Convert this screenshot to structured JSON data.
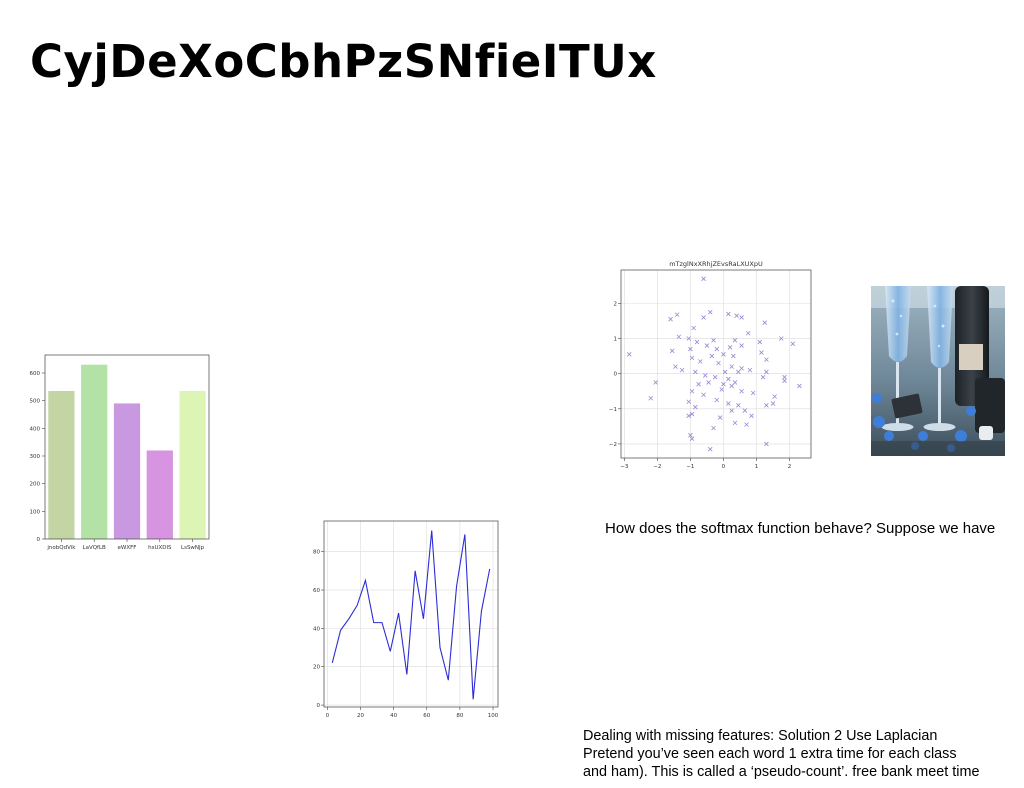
{
  "slide": {
    "title": "CyjDeXoCbhPzSNfieITUx",
    "softmax_text": "How does the softmax function behave? Suppose we have",
    "notes": [
      "Dealing with missing features: Solution 2 Use Laplacian",
      "Pretend you’ve seen each word 1 extra time for each class",
      "and ham). This is called a ‘pseudo-count’. free bank meet time"
    ]
  },
  "chart_data": [
    {
      "type": "bar",
      "title": "",
      "xlabel": "",
      "ylabel": "",
      "categories": [
        "jnobQdVik",
        "LaVQfLB",
        "eWXFF",
        "hsUXDlS",
        "LsSwNJp"
      ],
      "values": [
        535,
        630,
        490,
        320,
        535
      ],
      "colors": [
        "#c3d5a2",
        "#b2e2a6",
        "#c899e1",
        "#d794e0",
        "#dcf5b5"
      ],
      "ylim": [
        0,
        665
      ],
      "yticks": [
        0,
        100,
        200,
        300,
        400,
        500,
        600
      ],
      "grid": false
    },
    {
      "type": "line",
      "title": "",
      "xlabel": "",
      "ylabel": "",
      "x": [
        3,
        8,
        13,
        18,
        23,
        28,
        33,
        38,
        43,
        48,
        53,
        58,
        63,
        68,
        73,
        78,
        83,
        88,
        93,
        98
      ],
      "values": [
        22,
        39,
        45,
        52,
        65,
        43,
        43,
        28,
        48,
        16,
        70,
        45,
        91,
        30,
        13,
        62,
        89,
        3,
        49,
        71
      ],
      "color": "#2d2dd6",
      "xlim": [
        -2,
        103
      ],
      "ylim": [
        -1,
        96
      ],
      "xticks": [
        0,
        20,
        40,
        60,
        80,
        100
      ],
      "yticks": [
        0,
        20,
        40,
        60,
        80
      ],
      "grid": true
    },
    {
      "type": "scatter",
      "title": "mTzglNxXRhjZEvsRaLXUXpU",
      "xlabel": "",
      "ylabel": "",
      "marker": "x",
      "color": "#9b86d6",
      "points": [
        [
          -0.6,
          2.7
        ],
        [
          -0.4,
          1.75
        ],
        [
          0.15,
          1.7
        ],
        [
          0.4,
          1.65
        ],
        [
          -1.4,
          1.68
        ],
        [
          -0.6,
          1.6
        ],
        [
          0.55,
          1.6
        ],
        [
          -1.6,
          1.55
        ],
        [
          1.25,
          1.45
        ],
        [
          -0.9,
          1.3
        ],
        [
          0.75,
          1.15
        ],
        [
          -1.35,
          1.05
        ],
        [
          -1.05,
          1.0
        ],
        [
          -0.8,
          0.9
        ],
        [
          0.35,
          0.95
        ],
        [
          1.75,
          1.0
        ],
        [
          2.1,
          0.85
        ],
        [
          -0.5,
          0.8
        ],
        [
          -0.2,
          0.7
        ],
        [
          0.2,
          0.75
        ],
        [
          0.55,
          0.8
        ],
        [
          1.1,
          0.9
        ],
        [
          -1.55,
          0.65
        ],
        [
          -1.0,
          0.7
        ],
        [
          0.0,
          0.55
        ],
        [
          -0.35,
          0.5
        ],
        [
          0.3,
          0.5
        ],
        [
          1.3,
          0.4
        ],
        [
          -2.85,
          0.55
        ],
        [
          -1.45,
          0.2
        ],
        [
          -0.95,
          0.45
        ],
        [
          -0.7,
          0.35
        ],
        [
          -0.15,
          0.3
        ],
        [
          0.25,
          0.2
        ],
        [
          0.55,
          0.15
        ],
        [
          1.15,
          0.6
        ],
        [
          -1.25,
          0.1
        ],
        [
          -0.85,
          0.05
        ],
        [
          0.05,
          0.05
        ],
        [
          0.45,
          0.05
        ],
        [
          0.8,
          0.1
        ],
        [
          1.3,
          0.05
        ],
        [
          -0.55,
          -0.05
        ],
        [
          -0.25,
          -0.1
        ],
        [
          0.15,
          -0.15
        ],
        [
          0.35,
          -0.25
        ],
        [
          1.2,
          -0.1
        ],
        [
          1.85,
          -0.2
        ],
        [
          -2.05,
          -0.25
        ],
        [
          -0.75,
          -0.3
        ],
        [
          -0.45,
          -0.25
        ],
        [
          0.0,
          -0.3
        ],
        [
          0.25,
          -0.35
        ],
        [
          0.9,
          -0.55
        ],
        [
          -0.95,
          -0.5
        ],
        [
          -0.6,
          -0.6
        ],
        [
          -0.05,
          -0.45
        ],
        [
          0.55,
          -0.5
        ],
        [
          1.55,
          -0.65
        ],
        [
          -2.2,
          -0.7
        ],
        [
          -1.05,
          -0.8
        ],
        [
          -0.2,
          -0.75
        ],
        [
          0.15,
          -0.85
        ],
        [
          0.45,
          -0.9
        ],
        [
          1.3,
          -0.9
        ],
        [
          2.3,
          -0.35
        ],
        [
          1.5,
          -0.85
        ],
        [
          -0.85,
          -0.95
        ],
        [
          0.25,
          -1.05
        ],
        [
          0.65,
          -1.05
        ],
        [
          -1.05,
          -1.2
        ],
        [
          -0.95,
          -1.15
        ],
        [
          0.85,
          -1.2
        ],
        [
          -0.1,
          -1.25
        ],
        [
          0.35,
          -1.4
        ],
        [
          0.7,
          -1.45
        ],
        [
          -0.3,
          -1.55
        ],
        [
          -0.95,
          -1.85
        ],
        [
          -1.0,
          -1.75
        ],
        [
          1.3,
          -2.0
        ],
        [
          -0.4,
          -2.15
        ],
        [
          1.85,
          -0.1
        ],
        [
          -0.3,
          0.95
        ]
      ],
      "xlim": [
        -3.1,
        2.65
      ],
      "ylim": [
        -2.4,
        2.95
      ],
      "xticks": [
        -3,
        -2,
        -1,
        0,
        1,
        2
      ],
      "yticks": [
        -2,
        -1,
        0,
        1,
        2
      ],
      "grid": true
    }
  ]
}
